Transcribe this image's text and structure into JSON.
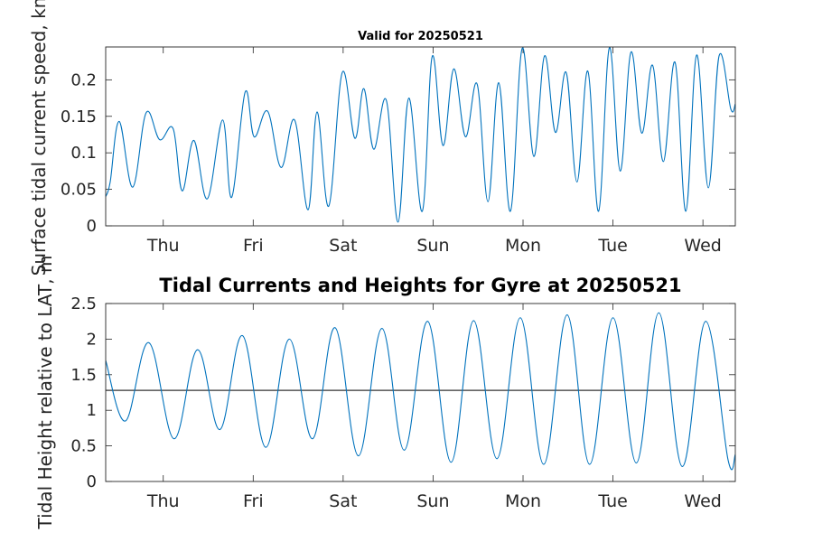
{
  "chart_data": [
    {
      "type": "line",
      "title": "Valid for 20250521",
      "xlabel": "",
      "ylabel": "Surface tidal current speed, kn",
      "ylim": [
        0,
        0.245
      ],
      "yticks": [
        0,
        0.05,
        0.1,
        0.15,
        0.2
      ],
      "ytick_labels": [
        "0",
        "0.05",
        "0.1",
        "0.15",
        "0.2"
      ],
      "xlim": [
        0,
        7.0
      ],
      "xtick_positions": [
        0.64,
        1.64,
        2.64,
        3.64,
        4.64,
        5.64,
        6.64
      ],
      "xtick_labels": [
        "Thu",
        "Fri",
        "Sat",
        "Sun",
        "Mon",
        "Tue",
        "Wed"
      ],
      "grid": false,
      "color": "#0072BD",
      "series": [
        {
          "x": [
            0.0,
            0.05,
            0.15,
            0.3,
            0.45,
            0.6,
            0.75,
            0.85,
            0.98,
            1.13,
            1.3,
            1.4,
            1.55,
            1.65,
            1.8,
            1.95,
            2.1,
            2.25,
            2.35,
            2.48,
            2.63,
            2.77,
            2.87,
            2.98,
            3.12,
            3.25,
            3.37,
            3.52,
            3.63,
            3.75,
            3.87,
            4.0,
            4.13,
            4.25,
            4.37,
            4.5,
            4.63,
            4.76,
            4.88,
            5.0,
            5.12,
            5.24,
            5.36,
            5.48,
            5.6,
            5.72,
            5.84,
            5.96,
            6.08,
            6.2,
            6.33,
            6.45,
            6.57,
            6.7,
            6.82,
            6.95,
            7.0
          ],
          "y": [
            0.04,
            0.06,
            0.143,
            0.053,
            0.155,
            0.118,
            0.133,
            0.048,
            0.117,
            0.037,
            0.145,
            0.039,
            0.183,
            0.122,
            0.157,
            0.08,
            0.145,
            0.022,
            0.156,
            0.027,
            0.21,
            0.12,
            0.188,
            0.105,
            0.172,
            0.005,
            0.175,
            0.02,
            0.232,
            0.11,
            0.215,
            0.122,
            0.194,
            0.033,
            0.196,
            0.02,
            0.243,
            0.095,
            0.233,
            0.128,
            0.21,
            0.06,
            0.212,
            0.02,
            0.244,
            0.075,
            0.238,
            0.127,
            0.22,
            0.088,
            0.224,
            0.02,
            0.234,
            0.052,
            0.233,
            0.16,
            0.167
          ]
        }
      ]
    },
    {
      "type": "line",
      "title": "Tidal Currents and Heights for Gyre at 20250521",
      "xlabel": "",
      "ylabel": "Tidal Height relative to LAT, m",
      "ylim": [
        0,
        2.5
      ],
      "yticks": [
        0,
        0.5,
        1,
        1.5,
        2,
        2.5
      ],
      "ytick_labels": [
        "0",
        "0.5",
        "1",
        "1.5",
        "2",
        "2.5"
      ],
      "xlim": [
        0,
        7.0
      ],
      "xtick_positions": [
        0.64,
        1.64,
        2.64,
        3.64,
        4.64,
        5.64,
        6.64
      ],
      "xtick_labels": [
        "Thu",
        "Fri",
        "Sat",
        "Sun",
        "Mon",
        "Tue",
        "Wed"
      ],
      "grid": false,
      "color": "#0072BD",
      "reference_level": 1.28,
      "reference_color": "#333333",
      "series": [
        {
          "x": [
            0.0,
            0.22,
            0.48,
            0.76,
            1.02,
            1.27,
            1.52,
            1.78,
            2.04,
            2.3,
            2.55,
            2.81,
            3.07,
            3.32,
            3.58,
            3.84,
            4.09,
            4.35,
            4.61,
            4.87,
            5.13,
            5.38,
            5.64,
            5.9,
            6.15,
            6.41,
            6.67,
            6.92,
            7.0
          ],
          "y": [
            1.7,
            0.85,
            1.95,
            0.6,
            1.85,
            0.73,
            2.05,
            0.48,
            2.0,
            0.6,
            2.16,
            0.36,
            2.15,
            0.44,
            2.25,
            0.27,
            2.26,
            0.32,
            2.3,
            0.24,
            2.34,
            0.24,
            2.3,
            0.26,
            2.37,
            0.21,
            2.25,
            0.3,
            0.38
          ]
        }
      ]
    }
  ]
}
